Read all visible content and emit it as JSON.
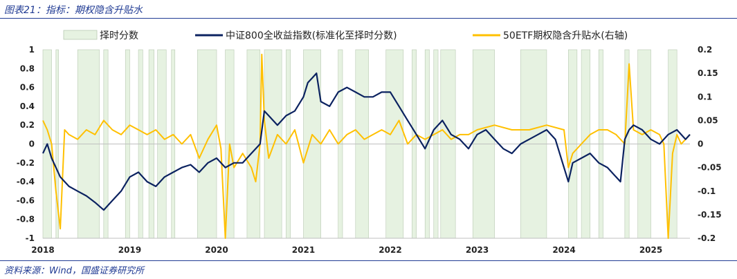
{
  "header": {
    "title": "图表21：指标：期权隐含升贴水"
  },
  "footer": {
    "source": "资料来源：Wind，国盛证券研究所"
  },
  "chart_data": {
    "type": "line",
    "title": "",
    "x_ticks": [
      "2018",
      "2019",
      "2020",
      "2021",
      "2022",
      "2023",
      "2024",
      "2025"
    ],
    "x_range": [
      2018.0,
      2025.45
    ],
    "left_axis": {
      "ticks": [
        1,
        0.8,
        0.6,
        0.4,
        0.2,
        0,
        -0.2,
        -0.4,
        -0.6,
        -0.8,
        -1
      ],
      "ylim": [
        -1,
        1
      ]
    },
    "right_axis": {
      "ticks": [
        0.2,
        0.15,
        0.1,
        0.05,
        0,
        -0.05,
        -0.1,
        -0.15,
        -0.2
      ],
      "ylim": [
        -0.2,
        0.2
      ]
    },
    "legend": {
      "placement": "top",
      "items": [
        {
          "name": "择时分数",
          "kind": "area",
          "color": "#e6f2e1"
        },
        {
          "name": "中证800全收益指数(标准化至择时分数)",
          "kind": "line",
          "color": "#0b2260"
        },
        {
          "name": "50ETF期权隐含升贴水(右轴)",
          "kind": "line",
          "color": "#ffc000"
        }
      ]
    },
    "series": [
      {
        "name": "择时分数",
        "axis": "left",
        "kind": "area",
        "color": "#e6f2e1",
        "x": [
          2018.0,
          2018.1,
          2018.15,
          2018.18,
          2018.4,
          2018.65,
          2018.7,
          2018.75,
          2018.95,
          2019.0,
          2019.1,
          2019.15,
          2019.22,
          2019.28,
          2019.32,
          2019.42,
          2019.48,
          2019.52,
          2019.78,
          2020.0,
          2020.1,
          2020.2,
          2020.35,
          2020.5,
          2020.55,
          2020.75,
          2020.8,
          2020.85,
          2021.0,
          2021.2,
          2021.4,
          2021.45,
          2021.6,
          2021.75,
          2021.95,
          2022.15,
          2022.25,
          2022.3,
          2022.4,
          2022.45,
          2022.5,
          2022.55,
          2022.58,
          2022.75,
          2022.95,
          2023.2,
          2023.5,
          2023.8,
          2024.05,
          2024.15,
          2024.2,
          2024.3,
          2024.4,
          2024.45,
          2024.7,
          2024.75,
          2024.85,
          2025.0,
          2025.2,
          2025.3,
          2025.45
        ],
        "values": [
          1,
          0,
          1,
          0,
          1,
          0,
          1,
          0,
          1,
          0,
          1,
          0,
          1,
          0,
          1,
          0,
          1,
          0,
          1,
          0,
          1,
          0,
          1,
          0,
          1,
          0,
          1,
          0,
          1,
          0,
          1,
          0,
          1,
          0,
          1,
          0,
          1,
          0,
          1,
          0,
          1,
          0,
          1,
          0,
          1,
          0,
          1,
          0,
          1,
          0,
          1,
          0,
          1,
          0,
          1,
          0,
          1,
          0,
          1,
          0,
          1
        ]
      },
      {
        "name": "中证800全收益指数(标准化至择时分数)",
        "axis": "left",
        "kind": "line",
        "color": "#0b2260",
        "x": [
          2018.0,
          2018.05,
          2018.1,
          2018.2,
          2018.3,
          2018.4,
          2018.5,
          2018.6,
          2018.7,
          2018.8,
          2018.9,
          2019.0,
          2019.1,
          2019.2,
          2019.3,
          2019.4,
          2019.5,
          2019.6,
          2019.7,
          2019.8,
          2019.9,
          2020.0,
          2020.1,
          2020.2,
          2020.3,
          2020.4,
          2020.5,
          2020.55,
          2020.6,
          2020.7,
          2020.8,
          2020.9,
          2021.0,
          2021.05,
          2021.1,
          2021.15,
          2021.2,
          2021.3,
          2021.4,
          2021.5,
          2021.6,
          2021.7,
          2021.8,
          2021.9,
          2022.0,
          2022.1,
          2022.2,
          2022.3,
          2022.4,
          2022.5,
          2022.6,
          2022.7,
          2022.8,
          2022.9,
          2023.0,
          2023.1,
          2023.2,
          2023.3,
          2023.4,
          2023.5,
          2023.6,
          2023.7,
          2023.8,
          2023.9,
          2024.0,
          2024.05,
          2024.1,
          2024.2,
          2024.3,
          2024.4,
          2024.5,
          2024.6,
          2024.65,
          2024.7,
          2024.75,
          2024.8,
          2024.9,
          2025.0,
          2025.1,
          2025.2,
          2025.3,
          2025.4,
          2025.45
        ],
        "values": [
          -0.1,
          0.0,
          -0.15,
          -0.35,
          -0.45,
          -0.5,
          -0.55,
          -0.62,
          -0.7,
          -0.6,
          -0.5,
          -0.35,
          -0.3,
          -0.4,
          -0.45,
          -0.35,
          -0.3,
          -0.25,
          -0.22,
          -0.3,
          -0.2,
          -0.15,
          -0.25,
          -0.2,
          -0.2,
          -0.1,
          0.0,
          0.35,
          0.3,
          0.2,
          0.3,
          0.35,
          0.5,
          0.65,
          0.7,
          0.75,
          0.45,
          0.4,
          0.55,
          0.6,
          0.55,
          0.5,
          0.5,
          0.55,
          0.55,
          0.4,
          0.25,
          0.1,
          -0.05,
          0.15,
          0.25,
          0.1,
          0.05,
          -0.05,
          0.1,
          0.15,
          0.05,
          -0.05,
          -0.1,
          0.0,
          0.05,
          0.1,
          0.15,
          0.05,
          -0.25,
          -0.4,
          -0.2,
          -0.15,
          -0.1,
          -0.2,
          -0.25,
          -0.35,
          -0.4,
          0.05,
          0.15,
          0.2,
          0.15,
          0.05,
          0.0,
          0.1,
          0.15,
          0.05,
          0.1
        ]
      },
      {
        "name": "50ETF期权隐含升贴水(右轴)",
        "axis": "right",
        "kind": "line",
        "color": "#ffc000",
        "x": [
          2018.0,
          2018.05,
          2018.1,
          2018.15,
          2018.2,
          2018.25,
          2018.3,
          2018.4,
          2018.5,
          2018.6,
          2018.7,
          2018.8,
          2018.9,
          2019.0,
          2019.1,
          2019.2,
          2019.3,
          2019.4,
          2019.5,
          2019.6,
          2019.7,
          2019.8,
          2019.9,
          2020.0,
          2020.05,
          2020.1,
          2020.15,
          2020.2,
          2020.3,
          2020.4,
          2020.45,
          2020.5,
          2020.52,
          2020.55,
          2020.6,
          2020.7,
          2020.8,
          2020.9,
          2021.0,
          2021.1,
          2021.2,
          2021.3,
          2021.4,
          2021.5,
          2021.6,
          2021.7,
          2021.8,
          2021.9,
          2022.0,
          2022.1,
          2022.2,
          2022.3,
          2022.4,
          2022.5,
          2022.6,
          2022.7,
          2022.8,
          2022.9,
          2023.0,
          2023.2,
          2023.4,
          2023.6,
          2023.8,
          2024.0,
          2024.05,
          2024.1,
          2024.2,
          2024.3,
          2024.4,
          2024.5,
          2024.6,
          2024.7,
          2024.75,
          2024.8,
          2024.9,
          2025.0,
          2025.1,
          2025.15,
          2025.2,
          2025.25,
          2025.3,
          2025.35,
          2025.4,
          2025.45
        ],
        "values": [
          0.05,
          0.03,
          0.0,
          -0.1,
          -0.18,
          0.03,
          0.02,
          0.01,
          0.03,
          0.02,
          0.05,
          0.03,
          0.02,
          0.04,
          0.03,
          0.02,
          0.03,
          0.01,
          0.02,
          0.0,
          0.02,
          -0.03,
          0.01,
          0.04,
          -0.01,
          -0.2,
          0.0,
          -0.05,
          -0.02,
          -0.05,
          -0.08,
          0.0,
          0.19,
          0.05,
          -0.03,
          0.02,
          0.0,
          0.03,
          -0.04,
          0.02,
          0.0,
          0.03,
          0.0,
          0.02,
          0.03,
          0.01,
          0.02,
          0.03,
          0.02,
          0.05,
          0.0,
          0.02,
          0.01,
          0.02,
          0.03,
          0.01,
          0.02,
          0.02,
          0.03,
          0.04,
          0.03,
          0.03,
          0.04,
          0.03,
          -0.05,
          -0.02,
          0.0,
          0.02,
          0.03,
          0.03,
          0.02,
          0.0,
          0.17,
          0.03,
          0.02,
          0.03,
          0.02,
          0.0,
          -0.2,
          -0.02,
          0.02,
          0.0,
          0.01,
          0.02
        ]
      }
    ]
  }
}
